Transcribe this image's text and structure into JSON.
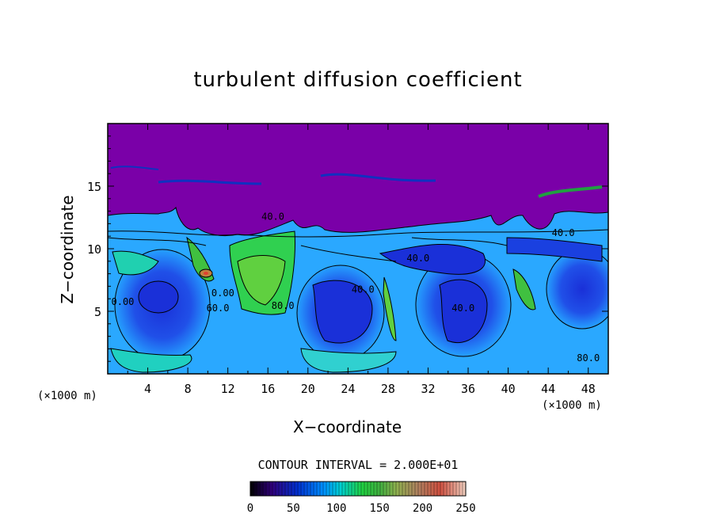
{
  "chart_data": {
    "type": "heatmap",
    "title": "turbulent diffusion coefficient",
    "xlabel": "X−coordinate",
    "ylabel": "Z−coordinate",
    "x_unit": "(×1000 m)",
    "y_unit": "(×1000 m)",
    "xlim": [
      0,
      50
    ],
    "ylim": [
      0,
      20
    ],
    "x_ticks": [
      "4",
      "8",
      "12",
      "16",
      "20",
      "24",
      "28",
      "32",
      "36",
      "40",
      "44",
      "48"
    ],
    "y_ticks": [
      "5",
      "10",
      "15"
    ],
    "contour_interval_text": "CONTOUR INTERVAL = 2.000E+01",
    "colorbar": {
      "ticks": [
        "0",
        "50",
        "100",
        "150",
        "200",
        "250"
      ],
      "range": [
        0,
        250
      ]
    },
    "contour_labels": [
      {
        "text": "0.00",
        "x": 1.5,
        "y": 5.5
      },
      {
        "text": "40.0",
        "x": 16.5,
        "y": 12.3
      },
      {
        "text": "40.0",
        "x": 31.0,
        "y": 9.0
      },
      {
        "text": "40.0",
        "x": 25.5,
        "y": 6.5
      },
      {
        "text": "40.0",
        "x": 35.5,
        "y": 5.0
      },
      {
        "text": "40.0",
        "x": 45.5,
        "y": 11.0
      },
      {
        "text": "60.0",
        "x": 11.0,
        "y": 5.0
      },
      {
        "text": "80.0",
        "x": 17.5,
        "y": 5.2
      },
      {
        "text": "80.0",
        "x": 48.0,
        "y": 1.0
      },
      {
        "text": "0.00",
        "x": 11.5,
        "y": 6.2
      }
    ],
    "levels": {
      "top_layer_value": 0,
      "upper_boundary_z": 12.5,
      "typical_lower_value": 60,
      "peak_value": 240,
      "peak_location": [
        9.8,
        8.1
      ]
    }
  }
}
